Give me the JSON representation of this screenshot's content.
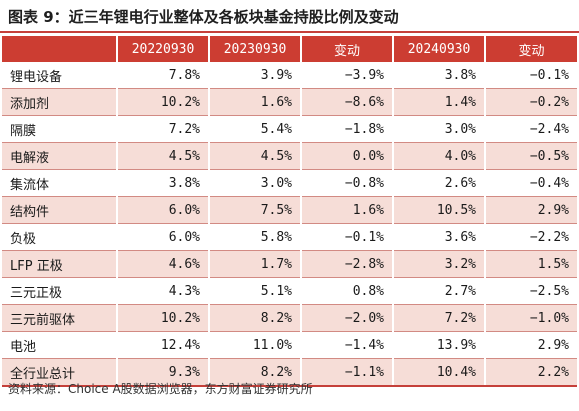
{
  "title": "图表 9：近三年锂电行业整体及各板块基金持股比例及变动",
  "columns": [
    "",
    "20220930",
    "20230930",
    "变动",
    "20240930",
    "变动"
  ],
  "rows": [
    {
      "label": "锂电设备",
      "values": [
        "7.8%",
        "3.9%",
        "−3.9%",
        "3.8%",
        "−0.1%"
      ]
    },
    {
      "label": "添加剂",
      "values": [
        "10.2%",
        "1.6%",
        "−8.6%",
        "1.4%",
        "−0.2%"
      ]
    },
    {
      "label": "隔膜",
      "values": [
        "7.2%",
        "5.4%",
        "−1.8%",
        "3.0%",
        "−2.4%"
      ]
    },
    {
      "label": "电解液",
      "values": [
        "4.5%",
        "4.5%",
        "0.0%",
        "4.0%",
        "−0.5%"
      ]
    },
    {
      "label": "集流体",
      "values": [
        "3.8%",
        "3.0%",
        "−0.8%",
        "2.6%",
        "−0.4%"
      ]
    },
    {
      "label": "结构件",
      "values": [
        "6.0%",
        "7.5%",
        "1.6%",
        "10.5%",
        "2.9%"
      ]
    },
    {
      "label": "负极",
      "values": [
        "6.0%",
        "5.8%",
        "−0.1%",
        "3.6%",
        "−2.2%"
      ]
    },
    {
      "label": "LFP 正极",
      "values": [
        "4.6%",
        "1.7%",
        "−2.8%",
        "3.2%",
        "1.5%"
      ]
    },
    {
      "label": "三元正极",
      "values": [
        "4.3%",
        "5.1%",
        "0.8%",
        "2.7%",
        "−2.5%"
      ]
    },
    {
      "label": "三元前驱体",
      "values": [
        "10.2%",
        "8.2%",
        "−2.0%",
        "7.2%",
        "−1.0%"
      ]
    },
    {
      "label": "电池",
      "values": [
        "12.4%",
        "11.0%",
        "−1.4%",
        "13.9%",
        "2.9%"
      ]
    },
    {
      "label": "全行业总计",
      "values": [
        "9.3%",
        "8.2%",
        "−1.1%",
        "10.4%",
        "2.2%"
      ]
    }
  ],
  "source": "资料来源：Choice A股数据浏览器，东方财富证券研究所",
  "colors": {
    "accent": "#cc3d32",
    "shade": "#f6ddd7"
  }
}
